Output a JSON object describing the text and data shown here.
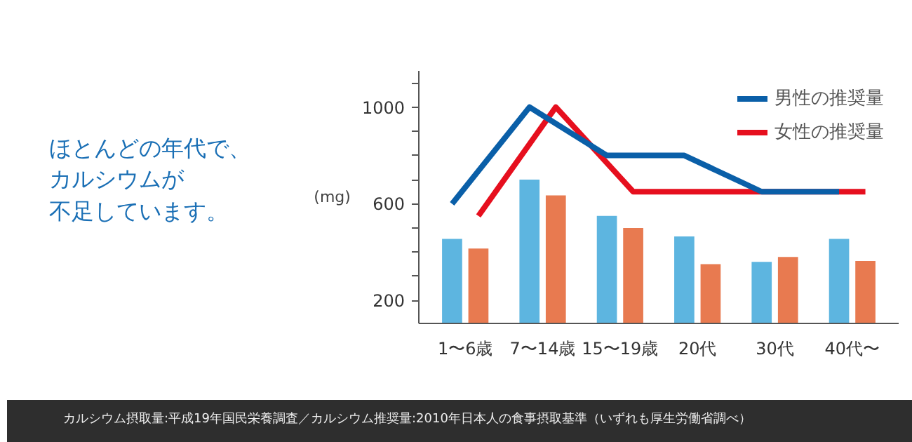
{
  "chart_data": {
    "type": "bar",
    "ylabel": "(mg)",
    "categories": [
      "1〜6歳",
      "7〜14歳",
      "15〜19歳",
      "20代",
      "30代",
      "40代〜"
    ],
    "series": [
      {
        "color": "#5db5e0",
        "values": [
          455,
          700,
          550,
          465,
          360,
          455
        ]
      },
      {
        "color": "#e87a50",
        "values": [
          415,
          635,
          500,
          350,
          380,
          363
        ]
      },
      {
        "name": "男性の推奨量",
        "type": "line",
        "color": "#0a5fa8",
        "values": [
          600,
          1000,
          800,
          800,
          650,
          650
        ]
      },
      {
        "name": "女性の推奨量",
        "type": "line",
        "color": "#e60f1e",
        "values": [
          550,
          1000,
          650,
          650,
          650,
          650
        ]
      }
    ],
    "ylim": [
      105,
      1150
    ],
    "yticks": [
      200,
      {
        "value": 300,
        "label": null
      },
      {
        "value": 400,
        "label": null
      },
      {
        "value": 500,
        "label": null
      },
      600,
      {
        "value": 700,
        "label": null
      },
      {
        "value": 800,
        "label": null
      },
      {
        "value": 900,
        "label": null
      },
      1000,
      {
        "value": 1100,
        "label": null
      }
    ],
    "grid": false,
    "legend": "top right",
    "annotations": [
      "ほとんどの年代で、",
      "カルシウムが",
      "不足しています。",
      "カルシウム摂取量:平成19年国民栄養調査／カルシウム推奨量:2010年日本人の食事摂取基準（いずれも厚生労働省調べ）"
    ]
  }
}
